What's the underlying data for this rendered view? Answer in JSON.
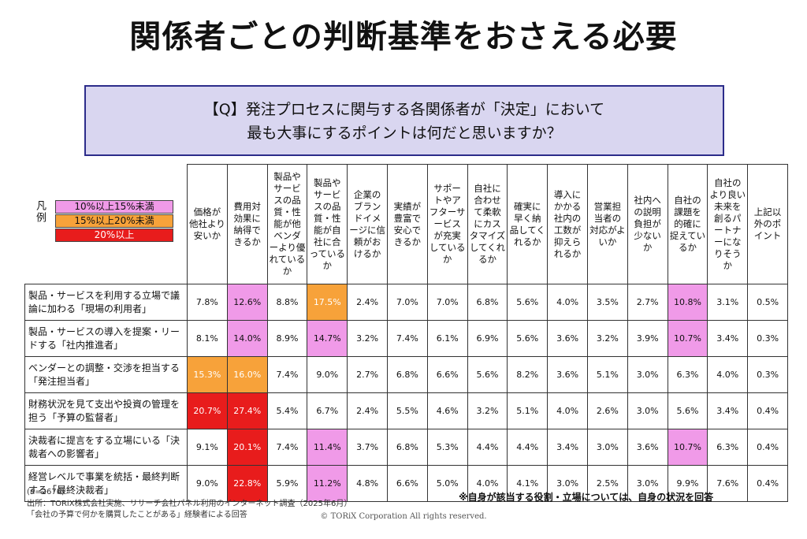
{
  "title": "関係者ごとの判断基準をおさえる必要",
  "question": {
    "line1": "【Q】発注プロセスに関与する各関係者が「決定」において",
    "line2": "最も大事にするポイントは何だと思いますか？"
  },
  "legend": {
    "title": "凡例",
    "items": [
      {
        "label": "10%以上15%未満",
        "color": "#f09ae8"
      },
      {
        "label": "15%以上20%未満",
        "color": "#f7a23a"
      },
      {
        "label": "20%以上",
        "color": "#e81c1c"
      }
    ]
  },
  "chart_data": {
    "type": "table",
    "columns": [
      "価格が他社より安いか",
      "費用対効果に納得できるか",
      "製品やサービスの品質・性能が他ベンダーより優れているか",
      "製品やサービスの品質・性能が自社に合っているか",
      "企業のブランドイメージに信頼がおけるか",
      "実績が豊富で安心できるか",
      "サポートやアフターサービスが充実しているか",
      "自社に合わせて柔軟にカスタマイズしてくれるか",
      "確実に早く納品してくれるか",
      "導入にかかる社内の工数が抑えられるか",
      "営業担当者の対応がよいか",
      "社内への説明負担が少ないか",
      "自社の課題を的確に捉えているか",
      "自社のより良い未来を創るパートナーになりそうか",
      "上記以外のポイント"
    ],
    "rows": [
      {
        "label": "製品・サービスを利用する立場で議論に加わる「現場の利用者」",
        "values": [
          "7.8%",
          "12.6%",
          "8.8%",
          "17.5%",
          "2.4%",
          "7.0%",
          "7.0%",
          "6.8%",
          "5.6%",
          "4.0%",
          "3.5%",
          "2.7%",
          "10.8%",
          "3.1%",
          "0.5%"
        ]
      },
      {
        "label": "製品・サービスの導入を提案・リードする「社内推進者」",
        "values": [
          "8.1%",
          "14.0%",
          "8.9%",
          "14.7%",
          "3.2%",
          "7.4%",
          "6.1%",
          "6.9%",
          "5.6%",
          "3.6%",
          "3.2%",
          "3.9%",
          "10.7%",
          "3.4%",
          "0.3%"
        ]
      },
      {
        "label": "ベンダーとの調整・交渉を担当する「発注担当者」",
        "values": [
          "15.3%",
          "16.0%",
          "7.4%",
          "9.0%",
          "2.7%",
          "6.8%",
          "6.6%",
          "5.6%",
          "8.2%",
          "3.6%",
          "5.1%",
          "3.0%",
          "6.3%",
          "4.0%",
          "0.3%"
        ]
      },
      {
        "label": "財務状況を見て支出や投資の管理を担う「予算の監督者」",
        "values": [
          "20.7%",
          "27.4%",
          "5.4%",
          "6.7%",
          "2.4%",
          "5.5%",
          "4.6%",
          "3.2%",
          "5.1%",
          "4.0%",
          "2.6%",
          "3.0%",
          "5.6%",
          "3.4%",
          "0.4%"
        ]
      },
      {
        "label": "決裁者に提言をする立場にいる「決裁者への影響者」",
        "values": [
          "9.1%",
          "20.1%",
          "7.4%",
          "11.4%",
          "3.7%",
          "6.8%",
          "5.3%",
          "4.4%",
          "4.4%",
          "3.4%",
          "3.0%",
          "3.6%",
          "10.7%",
          "6.3%",
          "0.4%"
        ]
      },
      {
        "label": "経営レベルで事業を統括・最終判断する「最終決裁者」",
        "values": [
          "9.0%",
          "22.8%",
          "5.9%",
          "11.2%",
          "4.8%",
          "6.6%",
          "5.0%",
          "4.0%",
          "4.1%",
          "3.0%",
          "2.5%",
          "3.0%",
          "9.9%",
          "7.6%",
          "0.4%"
        ]
      }
    ]
  },
  "notes": {
    "n": "(n=2676)",
    "source1": "出所：TORiX株式会社実施、リサーチ会社パネル利用のインターネット調査（2025年6月）",
    "source2": "「会社の予算で何かを購買したことがある」経験者による回答",
    "footnote": "※自身が該当する役割・立場については、自身の状況を回答",
    "copyright": "© TORiX Corporation All rights reserved."
  }
}
